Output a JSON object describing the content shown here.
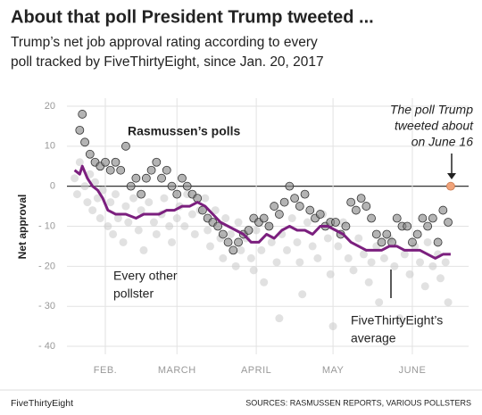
{
  "chart_data": {
    "type": "scatter",
    "title": "About that poll President Trump tweeted ...",
    "subtitle": [
      "Trump’s net job approval rating according to every",
      "poll tracked by FiveThirtyEight, since Jan. 20, 2017"
    ],
    "ylabel": "Net approval",
    "footer_left": "FiveThirtyEight",
    "footer_right": "SOURCES: RASMUSSEN REPORTS, VARIOUS POLLSTERS",
    "xlim": [
      17,
      174
    ],
    "xticks": [
      {
        "value": 32,
        "label": "FEB."
      },
      {
        "value": 60,
        "label": "MARCH"
      },
      {
        "value": 91,
        "label": "APRIL"
      },
      {
        "value": 121,
        "label": "MAY"
      },
      {
        "value": 152,
        "label": "JUNE"
      }
    ],
    "ylim": [
      -42,
      22
    ],
    "yticks": [
      20,
      10,
      0,
      {
        "value": -10,
        "label": "- 10"
      },
      {
        "value": -20,
        "label": "- 20"
      },
      {
        "value": -30,
        "label": "- 30"
      },
      {
        "value": -40,
        "label": "- 40"
      }
    ],
    "grid": true,
    "series": [
      {
        "name": [
          "Every other",
          "pollster"
        ],
        "type": "scatter",
        "color": "#c8c8c8",
        "x": [
          20,
          21,
          22,
          24,
          25,
          26,
          27,
          28,
          29,
          30,
          31,
          33,
          34,
          35,
          36,
          37,
          39,
          40,
          41,
          43,
          45,
          46,
          47,
          49,
          51,
          52,
          54,
          55,
          57,
          58,
          60,
          61,
          63,
          64,
          66,
          67,
          69,
          71,
          72,
          73,
          75,
          77,
          78,
          79,
          81,
          83,
          84,
          85,
          87,
          89,
          90,
          91,
          93,
          94,
          96,
          97,
          99,
          100,
          101,
          103,
          105,
          107,
          108,
          109,
          111,
          113,
          115,
          117,
          119,
          120,
          121,
          123,
          125,
          127,
          129,
          131,
          133,
          135,
          136,
          138,
          139,
          141,
          143,
          145,
          147,
          149,
          151,
          153,
          155,
          157,
          158,
          160,
          162,
          163,
          165,
          166
        ],
        "values": [
          2,
          -2,
          6,
          0,
          -4,
          3,
          -6,
          1,
          -3,
          -8,
          -1,
          -10,
          -4,
          -12,
          -2,
          -8,
          -14,
          -5,
          -9,
          -3,
          -11,
          -6,
          -16,
          -4,
          -9,
          -12,
          -7,
          -3,
          -10,
          -14,
          -8,
          -5,
          -10,
          -2,
          -7,
          -12,
          -6,
          -3,
          -11,
          -15,
          -6,
          -13,
          -18,
          -8,
          -12,
          -20,
          -9,
          -16,
          -13,
          -18,
          -21,
          -11,
          -16,
          -24,
          -10,
          -14,
          -19,
          -33,
          -12,
          -16,
          -8,
          -14,
          -19,
          -27,
          -9,
          -15,
          -18,
          -7,
          -13,
          -22,
          -35,
          -15,
          -9,
          -18,
          -21,
          -13,
          -17,
          -24,
          -19,
          -15,
          -29,
          -18,
          -13,
          -20,
          -33,
          -17,
          -22,
          -15,
          -19,
          -25,
          -14,
          -20,
          -17,
          -23,
          -19,
          -29
        ]
      },
      {
        "name": [
          "Rasmussen’s polls"
        ],
        "type": "scatter",
        "color": "#8c8c8c",
        "x": [
          22,
          23,
          24,
          26,
          28,
          30,
          32,
          34,
          36,
          38,
          40,
          42,
          44,
          46,
          48,
          50,
          52,
          54,
          56,
          58,
          60,
          62,
          64,
          66,
          68,
          70,
          72,
          74,
          76,
          78,
          80,
          82,
          84,
          86,
          88,
          90,
          92,
          94,
          96,
          98,
          100,
          102,
          104,
          106,
          108,
          110,
          112,
          114,
          116,
          118,
          120,
          122,
          124,
          126,
          128,
          130,
          132,
          134,
          136,
          138,
          140,
          142,
          144,
          146,
          148,
          150,
          152,
          154,
          156,
          158,
          160,
          162,
          164,
          166
        ],
        "values": [
          14,
          18,
          11,
          8,
          6,
          5,
          6,
          4,
          6,
          4,
          10,
          0,
          2,
          -2,
          2,
          4,
          6,
          2,
          4,
          0,
          -2,
          2,
          0,
          -2,
          -3,
          -6,
          -8,
          -9,
          -10,
          -12,
          -14,
          -16,
          -14,
          -12,
          -11,
          -8,
          -9,
          -8,
          -10,
          -5,
          -7,
          -4,
          0,
          -3,
          -5,
          -2,
          -6,
          -8,
          -7,
          -10,
          -9,
          -9,
          -12,
          -10,
          -4,
          -6,
          -3,
          -5,
          -8,
          -12,
          -14,
          -12,
          -14,
          -8,
          -10,
          -10,
          -14,
          -12,
          -8,
          -10,
          -8,
          -14,
          -6,
          -9
        ]
      },
      {
        "name": [
          "FiveThirtyEight’s",
          "average"
        ],
        "type": "line",
        "color": "#7b1f7e",
        "x": [
          20,
          22,
          23,
          25,
          27,
          29,
          31,
          33,
          36,
          40,
          44,
          47,
          50,
          53,
          56,
          59,
          62,
          65,
          68,
          71,
          74,
          77,
          80,
          83,
          86,
          89,
          92,
          95,
          98,
          101,
          104,
          107,
          110,
          113,
          116,
          119,
          122,
          125,
          128,
          131,
          134,
          137,
          140,
          143,
          146,
          149,
          152,
          155,
          158,
          161,
          164,
          167
        ],
        "values": [
          4,
          3,
          5,
          2,
          0,
          -1,
          -3,
          -6,
          -7,
          -7,
          -8,
          -7,
          -7,
          -7,
          -6,
          -6,
          -5,
          -5,
          -4,
          -5,
          -7,
          -9,
          -10,
          -11,
          -12,
          -14,
          -14,
          -12,
          -13,
          -11,
          -10,
          -11,
          -11,
          -12,
          -10,
          -10,
          -11,
          -12,
          -14,
          -15,
          -16,
          -16,
          -16,
          -15,
          -15,
          -16,
          -16,
          -16,
          -17,
          -18,
          -17,
          -17
        ]
      },
      {
        "type": "highlight",
        "color": "#f0a37a",
        "x": [
          167
        ],
        "values": [
          0
        ]
      }
    ],
    "annotations": [
      {
        "lines": [
          "The poll Trump",
          "tweeted about",
          "on June 16"
        ]
      }
    ]
  }
}
